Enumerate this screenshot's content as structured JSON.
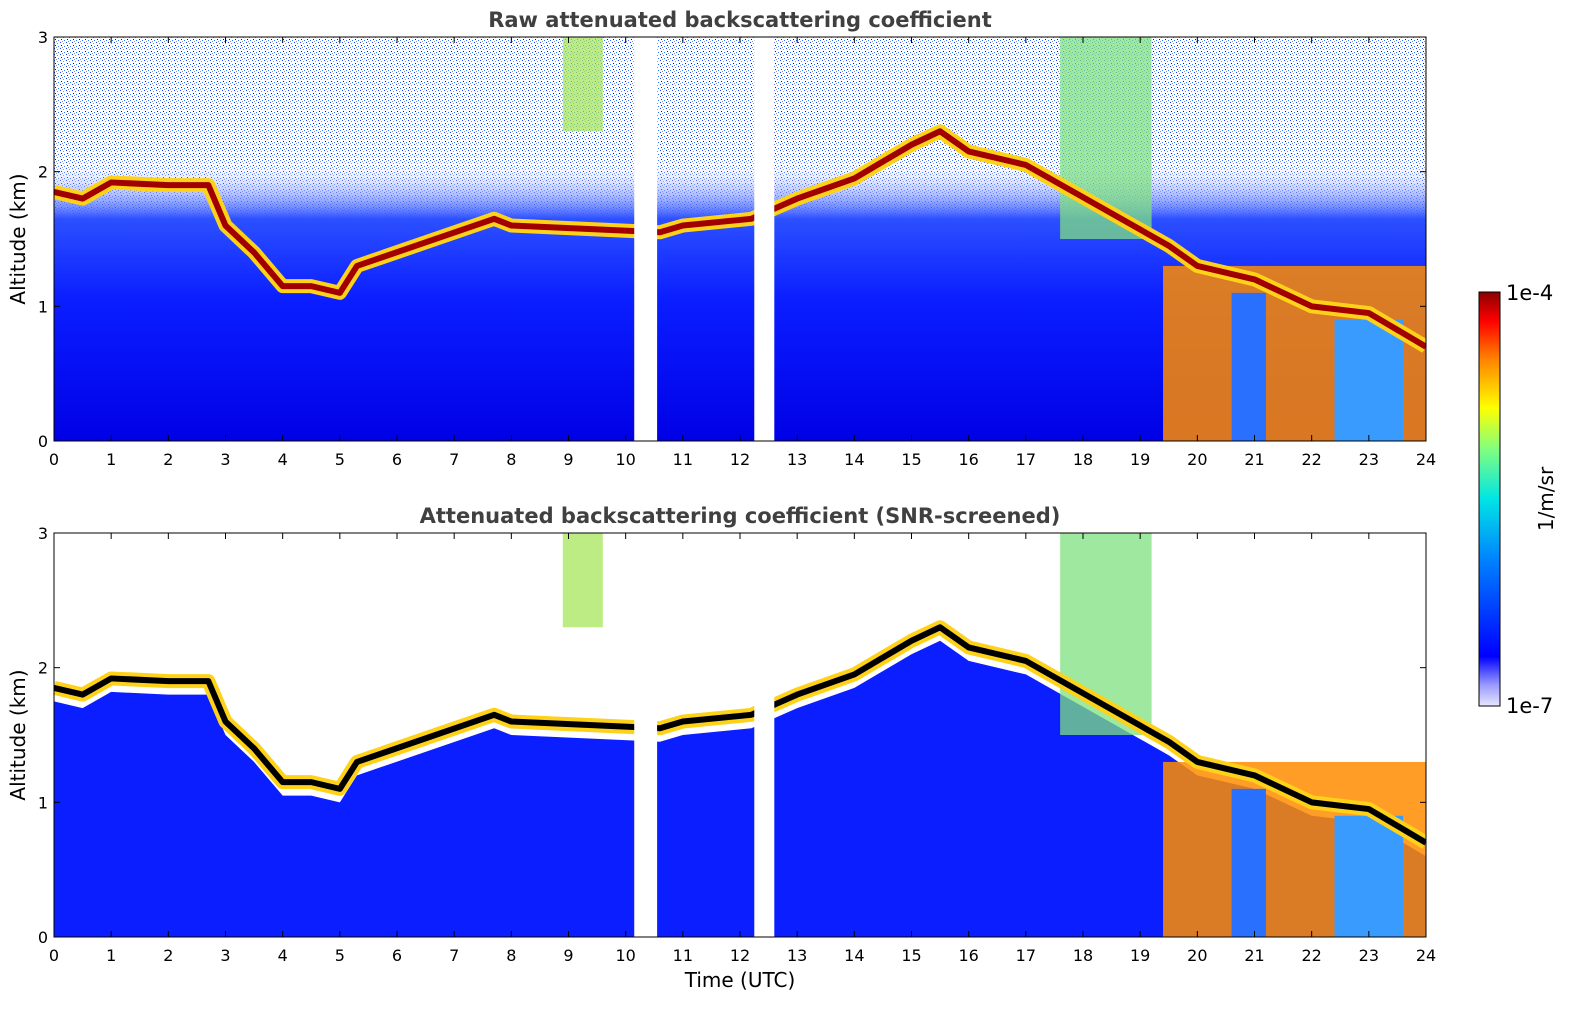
{
  "chart_data": [
    {
      "type": "heatmap",
      "title": "Raw attenuated backscattering coefficient",
      "xlabel": "",
      "ylabel": "Altitude (km)",
      "xlim": [
        0,
        24
      ],
      "ylim": [
        0,
        3
      ],
      "xticks": [
        "0",
        "1",
        "2",
        "3",
        "4",
        "5",
        "6",
        "7",
        "8",
        "9",
        "10",
        "11",
        "12",
        "13",
        "14",
        "15",
        "16",
        "17",
        "18",
        "19",
        "20",
        "21",
        "22",
        "23",
        "24"
      ],
      "yticks": [
        "0",
        "1",
        "2",
        "3"
      ],
      "data_gaps_utc": [
        [
          10.15,
          10.55
        ],
        [
          12.25,
          12.6
        ]
      ],
      "cloud_layer_top_km": {
        "time_utc": [
          0,
          0.5,
          1,
          2,
          2.7,
          3,
          3.5,
          4,
          4.5,
          5,
          5.3,
          7.7,
          8,
          10.6,
          11,
          12.2,
          13,
          14,
          15,
          15.5,
          16,
          17,
          19.5,
          20,
          21,
          22,
          23,
          24
        ],
        "altitude_km": [
          1.85,
          1.8,
          1.92,
          1.9,
          1.9,
          1.6,
          1.4,
          1.15,
          1.15,
          1.1,
          1.3,
          1.65,
          1.6,
          1.55,
          1.6,
          1.65,
          1.8,
          1.95,
          2.2,
          2.3,
          2.15,
          2.05,
          1.45,
          1.3,
          1.2,
          1.0,
          0.95,
          0.7
        ]
      },
      "colorbar": {
        "label": "1/m/sr",
        "min_label": "1e-7",
        "max_label": "1e-4",
        "scale": "log",
        "colormap": "jet"
      }
    },
    {
      "type": "heatmap",
      "title": "Attenuated backscattering coefficient (SNR-screened)",
      "xlabel": "Time (UTC)",
      "ylabel": "Altitude (km)",
      "xlim": [
        0,
        24
      ],
      "ylim": [
        0,
        3
      ],
      "xticks": [
        "0",
        "1",
        "2",
        "3",
        "4",
        "5",
        "6",
        "7",
        "8",
        "9",
        "10",
        "11",
        "12",
        "13",
        "14",
        "15",
        "16",
        "17",
        "18",
        "19",
        "20",
        "21",
        "22",
        "23",
        "24"
      ],
      "yticks": [
        "0",
        "1",
        "2",
        "3"
      ],
      "data_gaps_utc": [
        [
          10.15,
          10.55
        ],
        [
          12.25,
          12.6
        ]
      ],
      "colorbar": {
        "label": "1/m/sr",
        "min_label": "1e-7",
        "max_label": "1e-4",
        "scale": "log",
        "colormap": "jet"
      }
    }
  ],
  "colors": {
    "low": "#0000ff",
    "high": "#8b0000",
    "background": "#ffffff"
  }
}
